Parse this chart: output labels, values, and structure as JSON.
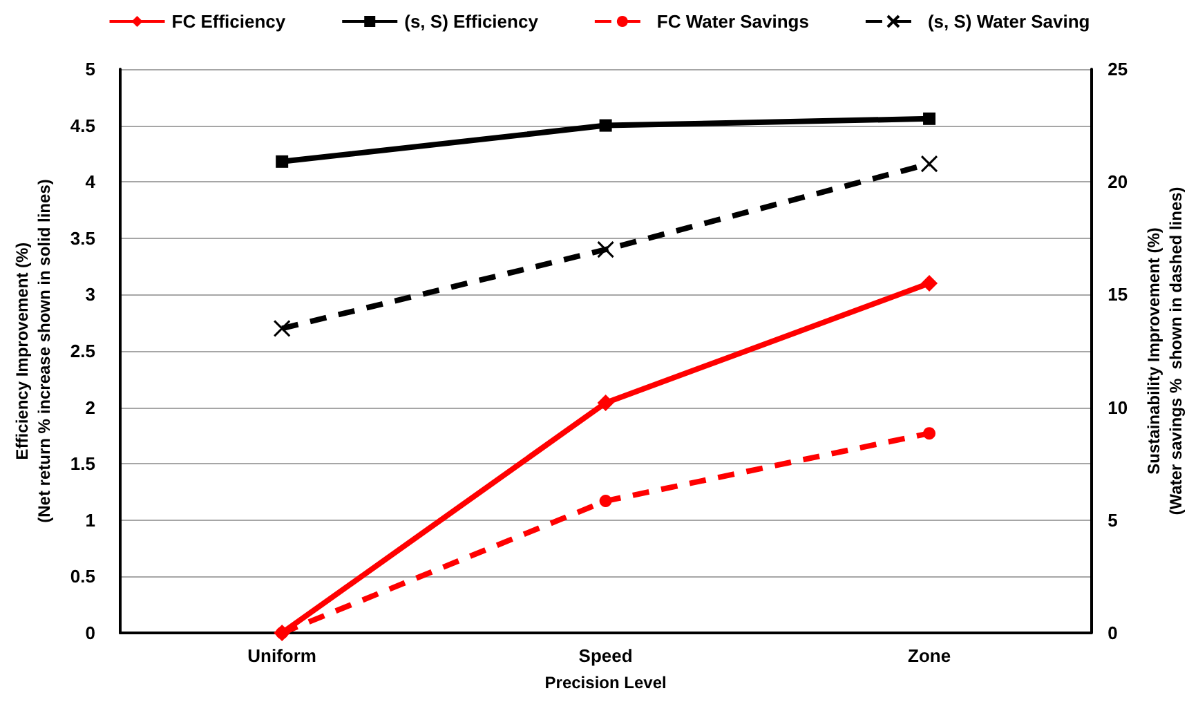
{
  "chart_data": {
    "type": "line",
    "xlabel": "Precision Level",
    "ylabel": "Efficiency Improvement (%)\n(Net return % increase shown in solid lines)",
    "y2label": "Sustainability Improvement (%)\n(Water savings %  shown in dashed lines)",
    "categories": [
      "Uniform",
      "Speed",
      "Zone"
    ],
    "series": [
      {
        "name": "FC Efficiency",
        "color": "#ff0000",
        "marker": "diamond",
        "line_style": "solid",
        "values": [
          0,
          2.04,
          3.1
        ]
      },
      {
        "name": "(s, S) Efficiency",
        "color": "#000000",
        "marker": "square",
        "line_style": "solid",
        "values": [
          4.18,
          4.5,
          4.56
        ]
      },
      {
        "name": "FC Water Savings",
        "color": "#ff0000",
        "marker": "circle",
        "line_style": "dashed",
        "axis": "y2",
        "values": [
          0,
          5.85,
          8.85
        ]
      },
      {
        "name": "(s, S) Water Saving",
        "color": "#000000",
        "marker": "cross",
        "line_style": "dashed",
        "axis": "y2",
        "values": [
          13.5,
          17,
          20.8
        ]
      }
    ],
    "ylim": [
      0,
      5
    ],
    "yticks": [
      0,
      0.5,
      1,
      1.5,
      2,
      2.5,
      3,
      3.5,
      4,
      4.5,
      5
    ],
    "y2lim": [
      0,
      25
    ],
    "y2ticks": [
      0,
      5,
      10,
      15,
      20,
      25
    ],
    "grid": "y",
    "legend": "top"
  }
}
